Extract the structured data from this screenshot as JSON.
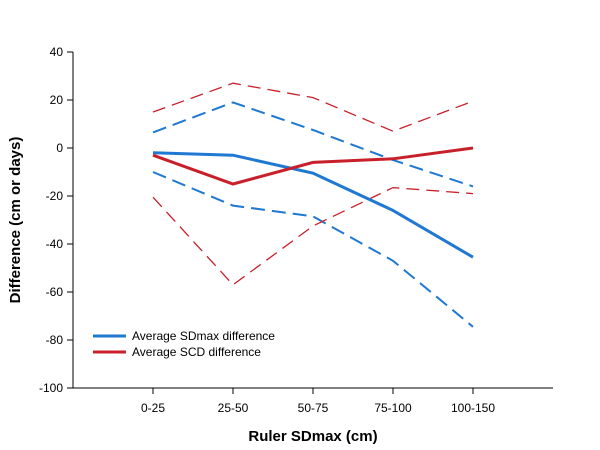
{
  "chart_data": {
    "type": "line",
    "title": "",
    "xlabel": "Ruler SDmax (cm)",
    "ylabel": "Difference (cm or days)",
    "categories": [
      "0-25",
      "25-50",
      "50-75",
      "75-100",
      "100-150"
    ],
    "ylim": [
      -100,
      40
    ],
    "yticks": [
      -100,
      -80,
      -60,
      -40,
      -20,
      0,
      20,
      40
    ],
    "grid": false,
    "legend_position": "bottom-left",
    "colors": {
      "blue": "#1f78d1",
      "red": "#c8202a"
    },
    "series": [
      {
        "name": "Average SDmax difference",
        "role": "mean",
        "color": "#1f78d1",
        "style": "solid",
        "values": [
          -2,
          -3,
          -10.5,
          -26,
          -45.5
        ]
      },
      {
        "name": "Average SCD difference",
        "role": "mean",
        "color": "#c8202a",
        "style": "solid",
        "values": [
          -3,
          -15,
          -6,
          -4.5,
          0
        ]
      },
      {
        "role": "upper-bound",
        "color": "#1f78d1",
        "style": "dashed",
        "values": [
          6.5,
          19,
          7.5,
          -5,
          -16
        ]
      },
      {
        "role": "lower-bound",
        "color": "#1f78d1",
        "style": "dashed",
        "values": [
          -10,
          -24,
          -28.5,
          -47,
          -74.5
        ]
      },
      {
        "role": "upper-bound",
        "color": "#c8202a",
        "style": "dashed-thin",
        "values": [
          15,
          27,
          21,
          7,
          19.5
        ]
      },
      {
        "role": "lower-bound",
        "color": "#c8202a",
        "style": "dashed-thin",
        "values": [
          -20.5,
          -57,
          -32.5,
          -16.5,
          -19
        ]
      }
    ]
  }
}
